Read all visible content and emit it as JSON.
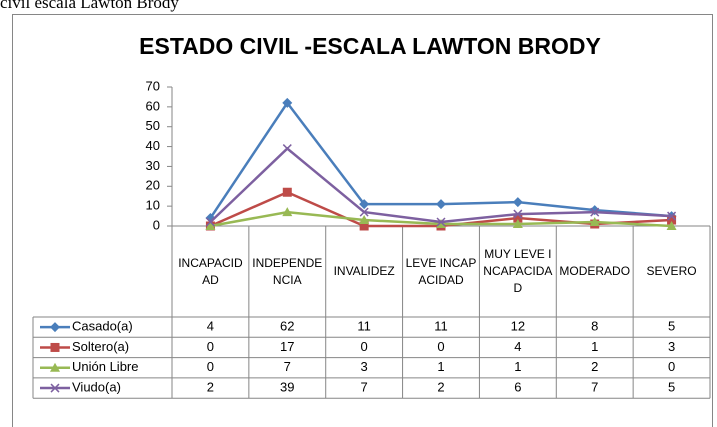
{
  "caption": "civil escala Lawton Brody",
  "chart_data": {
    "type": "line",
    "title": "ESTADO CIVIL -ESCALA LAWTON BRODY",
    "categories": [
      "INCAPACIDAD",
      "INDEPENDENCIA",
      "INVALIDEZ",
      "LEVE INCAPACIDAD",
      "MUY LEVE INCAPACIDAD",
      "MODERADO",
      "SEVERO"
    ],
    "series": [
      {
        "name": "Casado(a)",
        "color": "#4a7ebb",
        "marker": "diamond",
        "values": [
          4,
          62,
          11,
          11,
          12,
          8,
          5
        ]
      },
      {
        "name": "Soltero(a)",
        "color": "#be4b48",
        "marker": "square",
        "values": [
          0,
          17,
          0,
          0,
          4,
          1,
          3
        ]
      },
      {
        "name": "Unión Libre",
        "color": "#98b954",
        "marker": "triangle",
        "values": [
          0,
          7,
          3,
          1,
          1,
          2,
          0
        ]
      },
      {
        "name": "Viudo(a)",
        "color": "#7d60a0",
        "marker": "x",
        "values": [
          2,
          39,
          7,
          2,
          6,
          7,
          5
        ]
      }
    ],
    "ylim": [
      0,
      70
    ],
    "yticks": [
      0,
      10,
      20,
      30,
      40,
      50,
      60,
      70
    ],
    "grid": false,
    "data_table": true
  }
}
